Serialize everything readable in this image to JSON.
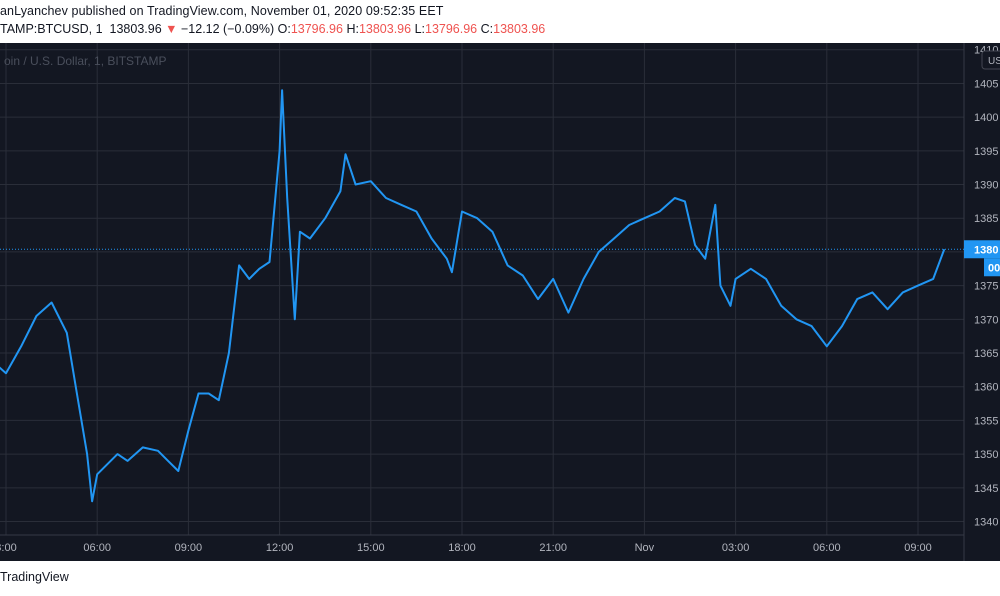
{
  "header": {
    "publisher_line": "anLyanchev published on TradingView.com, November 01, 2020 09:52:35 EET",
    "symbol": "TAMP:BTCUSD, 1",
    "last": "13803.96",
    "change_arrow": "▼",
    "change": "−12.12 (−0.09%)",
    "o_label": "O:",
    "o_value": "13796.96",
    "h_label": "H:",
    "h_value": "13803.96",
    "l_label": "L:",
    "l_value": "13796.96",
    "c_label": "C:",
    "c_value": "13803.96"
  },
  "chart": {
    "watermark": "oin / U.S. Dollar, 1, BITSTAMP",
    "currency_badge": "US",
    "price_tag": "1380",
    "countdown_tag": "00",
    "colors": {
      "background": "#131722",
      "grid": "#2a2e39",
      "line": "#2196f3",
      "axis_text": "#b2b5be"
    }
  },
  "chart_data": {
    "type": "line",
    "series": [
      {
        "values": [
          {
            "x": "01:00",
            "y": 13640
          },
          {
            "x": "01:30",
            "y": 13620
          },
          {
            "x": "02:00",
            "y": 13610
          },
          {
            "x": "02:30",
            "y": 13640
          },
          {
            "x": "03:00",
            "y": 13620
          },
          {
            "x": "03:30",
            "y": 13660
          },
          {
            "x": "04:00",
            "y": 13705
          },
          {
            "x": "04:30",
            "y": 13725
          },
          {
            "x": "05:00",
            "y": 13680
          },
          {
            "x": "05:20",
            "y": 13590
          },
          {
            "x": "05:40",
            "y": 13500
          },
          {
            "x": "05:50",
            "y": 13430
          },
          {
            "x": "06:00",
            "y": 13470
          },
          {
            "x": "06:40",
            "y": 13500
          },
          {
            "x": "07:00",
            "y": 13490
          },
          {
            "x": "07:30",
            "y": 13510
          },
          {
            "x": "08:00",
            "y": 13505
          },
          {
            "x": "08:20",
            "y": 13490
          },
          {
            "x": "08:40",
            "y": 13475
          },
          {
            "x": "09:00",
            "y": 13535
          },
          {
            "x": "09:20",
            "y": 13590
          },
          {
            "x": "09:40",
            "y": 13590
          },
          {
            "x": "10:00",
            "y": 13580
          },
          {
            "x": "10:20",
            "y": 13650
          },
          {
            "x": "10:40",
            "y": 13780
          },
          {
            "x": "11:00",
            "y": 13760
          },
          {
            "x": "11:20",
            "y": 13775
          },
          {
            "x": "11:40",
            "y": 13785
          },
          {
            "x": "12:00",
            "y": 13950
          },
          {
            "x": "12:05",
            "y": 14040
          },
          {
            "x": "12:15",
            "y": 13880
          },
          {
            "x": "12:30",
            "y": 13700
          },
          {
            "x": "12:40",
            "y": 13830
          },
          {
            "x": "13:00",
            "y": 13820
          },
          {
            "x": "13:30",
            "y": 13850
          },
          {
            "x": "14:00",
            "y": 13890
          },
          {
            "x": "14:10",
            "y": 13945
          },
          {
            "x": "14:30",
            "y": 13900
          },
          {
            "x": "15:00",
            "y": 13905
          },
          {
            "x": "15:30",
            "y": 13880
          },
          {
            "x": "16:00",
            "y": 13870
          },
          {
            "x": "16:30",
            "y": 13860
          },
          {
            "x": "17:00",
            "y": 13820
          },
          {
            "x": "17:30",
            "y": 13790
          },
          {
            "x": "17:40",
            "y": 13770
          },
          {
            "x": "18:00",
            "y": 13860
          },
          {
            "x": "18:30",
            "y": 13850
          },
          {
            "x": "19:00",
            "y": 13830
          },
          {
            "x": "19:30",
            "y": 13780
          },
          {
            "x": "20:00",
            "y": 13765
          },
          {
            "x": "20:30",
            "y": 13730
          },
          {
            "x": "21:00",
            "y": 13760
          },
          {
            "x": "21:30",
            "y": 13710
          },
          {
            "x": "22:00",
            "y": 13760
          },
          {
            "x": "22:30",
            "y": 13800
          },
          {
            "x": "23:00",
            "y": 13820
          },
          {
            "x": "23:30",
            "y": 13840
          },
          {
            "x": "Nov 00:00",
            "y": 13850
          },
          {
            "x": "00:30",
            "y": 13860
          },
          {
            "x": "01:00",
            "y": 13880
          },
          {
            "x": "01:20",
            "y": 13875
          },
          {
            "x": "01:40",
            "y": 13810
          },
          {
            "x": "02:00",
            "y": 13790
          },
          {
            "x": "02:20",
            "y": 13870
          },
          {
            "x": "02:30",
            "y": 13750
          },
          {
            "x": "02:50",
            "y": 13720
          },
          {
            "x": "03:00",
            "y": 13760
          },
          {
            "x": "03:30",
            "y": 13775
          },
          {
            "x": "04:00",
            "y": 13760
          },
          {
            "x": "04:30",
            "y": 13720
          },
          {
            "x": "05:00",
            "y": 13700
          },
          {
            "x": "05:30",
            "y": 13690
          },
          {
            "x": "06:00",
            "y": 13660
          },
          {
            "x": "06:30",
            "y": 13690
          },
          {
            "x": "07:00",
            "y": 13730
          },
          {
            "x": "07:30",
            "y": 13740
          },
          {
            "x": "08:00",
            "y": 13715
          },
          {
            "x": "08:30",
            "y": 13740
          },
          {
            "x": "09:00",
            "y": 13750
          },
          {
            "x": "09:30",
            "y": 13760
          },
          {
            "x": "09:52",
            "y": 13804
          }
        ]
      }
    ],
    "xlabel": "",
    "ylabel": "",
    "x_ticks": [
      "3:00",
      "06:00",
      "09:00",
      "12:00",
      "15:00",
      "18:00",
      "21:00",
      "Nov",
      "03:00",
      "06:00",
      "09:00"
    ],
    "y_ticks": [
      "1410",
      "1405",
      "1400",
      "1395",
      "1390",
      "1385",
      "1380",
      "1375",
      "1370",
      "1365",
      "1360",
      "1355",
      "1350",
      "1345",
      "1340"
    ],
    "ylim": [
      13380,
      14110
    ],
    "last_price": 13803.96,
    "grid": true,
    "legend": "none"
  },
  "footer": {
    "brand": "TradingView"
  }
}
